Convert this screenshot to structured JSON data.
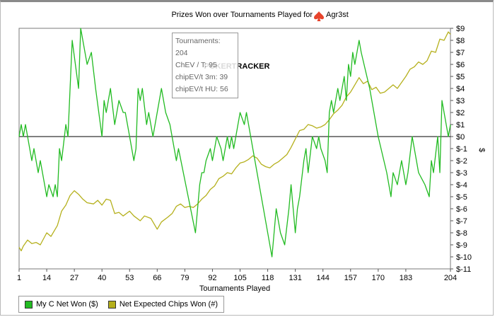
{
  "chart_data": {
    "type": "line",
    "title": "Prizes Won over Tournaments Played for",
    "player": "Agr3st",
    "xlabel": "Tournaments Played",
    "ylabel": "$",
    "xlim": [
      1,
      204
    ],
    "ylim": [
      -11,
      9
    ],
    "x_ticks": [
      1,
      14,
      27,
      40,
      53,
      66,
      79,
      92,
      105,
      118,
      131,
      144,
      157,
      170,
      183,
      204
    ],
    "y_ticks": [
      "$9",
      "$8",
      "$7",
      "$6",
      "$5",
      "$4",
      "$3",
      "$2",
      "$1",
      "$0",
      "$-1",
      "$-2",
      "$-3",
      "$-4",
      "$-5",
      "$-6",
      "$-7",
      "$-8",
      "$-9",
      "$-10",
      "$-11"
    ],
    "legend_position": "bottom-left",
    "series": [
      {
        "name": "My C Net Won ($)",
        "color": "#22bb22",
        "points": [
          [
            1,
            0
          ],
          [
            2,
            1
          ],
          [
            3,
            0
          ],
          [
            4,
            1
          ],
          [
            6,
            -1
          ],
          [
            7,
            -2
          ],
          [
            8,
            -1
          ],
          [
            10,
            -3
          ],
          [
            11,
            -2
          ],
          [
            13,
            -4
          ],
          [
            14,
            -5
          ],
          [
            15,
            -4
          ],
          [
            17,
            -5
          ],
          [
            18,
            -4
          ],
          [
            19,
            -5
          ],
          [
            20,
            -1
          ],
          [
            21,
            -2
          ],
          [
            23,
            1
          ],
          [
            24,
            0
          ],
          [
            26,
            8
          ],
          [
            29,
            4
          ],
          [
            30,
            9
          ],
          [
            33,
            6
          ],
          [
            35,
            7
          ],
          [
            37,
            4
          ],
          [
            40,
            0
          ],
          [
            41,
            3
          ],
          [
            42,
            2
          ],
          [
            44,
            4
          ],
          [
            46,
            1
          ],
          [
            47,
            2
          ],
          [
            48,
            3
          ],
          [
            50,
            2
          ],
          [
            51,
            2
          ],
          [
            53,
            0
          ],
          [
            55,
            -2
          ],
          [
            56,
            -1
          ],
          [
            57,
            4
          ],
          [
            58,
            3
          ],
          [
            59,
            4
          ],
          [
            61,
            1
          ],
          [
            62,
            2
          ],
          [
            64,
            0
          ],
          [
            67,
            3
          ],
          [
            68,
            4
          ],
          [
            70,
            2
          ],
          [
            72,
            1
          ],
          [
            75,
            -2
          ],
          [
            76,
            -1
          ],
          [
            84,
            -8
          ],
          [
            86,
            -4
          ],
          [
            87,
            -3
          ],
          [
            88,
            -3
          ],
          [
            89,
            -2
          ],
          [
            91,
            -1
          ],
          [
            92,
            -2
          ],
          [
            93,
            -1
          ],
          [
            94,
            0
          ],
          [
            96,
            -1
          ],
          [
            97,
            -2
          ],
          [
            98,
            -1
          ],
          [
            99,
            0
          ],
          [
            100,
            -1
          ],
          [
            101,
            0
          ],
          [
            102,
            -1
          ],
          [
            104,
            1
          ],
          [
            105,
            2
          ],
          [
            107,
            1
          ],
          [
            108,
            2
          ],
          [
            111,
            -1
          ],
          [
            120,
            -10
          ],
          [
            122,
            -6
          ],
          [
            123,
            -7
          ],
          [
            124,
            -8
          ],
          [
            126,
            -9
          ],
          [
            128,
            -6
          ],
          [
            129,
            -4
          ],
          [
            131,
            -8
          ],
          [
            132,
            -6
          ],
          [
            133,
            -5
          ],
          [
            135,
            -2
          ],
          [
            136,
            -1
          ],
          [
            137,
            -3
          ],
          [
            139,
            0
          ],
          [
            141,
            -1
          ],
          [
            142,
            0
          ],
          [
            143,
            -1
          ],
          [
            145,
            -2
          ],
          [
            146,
            -3
          ],
          [
            147,
            2
          ],
          [
            148,
            3
          ],
          [
            149,
            2
          ],
          [
            151,
            4
          ],
          [
            152,
            3
          ],
          [
            154,
            5
          ],
          [
            155,
            3
          ],
          [
            156,
            6
          ],
          [
            157,
            5
          ],
          [
            158,
            7
          ],
          [
            159,
            6
          ],
          [
            160,
            7
          ],
          [
            161,
            8
          ],
          [
            162,
            7
          ],
          [
            166,
            4
          ],
          [
            168,
            2
          ],
          [
            169,
            1
          ],
          [
            170,
            0
          ],
          [
            174,
            -3
          ],
          [
            176,
            -5
          ],
          [
            177,
            -3
          ],
          [
            179,
            -4
          ],
          [
            181,
            -2
          ],
          [
            183,
            -4
          ],
          [
            184,
            -3
          ],
          [
            186,
            0
          ],
          [
            187,
            -1
          ],
          [
            189,
            -3
          ],
          [
            192,
            -4
          ],
          [
            194,
            -5
          ],
          [
            195,
            -2
          ],
          [
            196,
            -3
          ],
          [
            198,
            0
          ],
          [
            199,
            -3
          ],
          [
            200,
            3
          ],
          [
            203,
            0
          ],
          [
            204,
            1
          ]
        ]
      },
      {
        "name": "Net Expected Chips Won (#)",
        "color": "#b5b01c",
        "points": [
          [
            1,
            -9.2
          ],
          [
            2,
            -9.5
          ],
          [
            3,
            -9.1
          ],
          [
            5,
            -8.6
          ],
          [
            7,
            -8.9
          ],
          [
            9,
            -8.8
          ],
          [
            11,
            -9.0
          ],
          [
            14,
            -8.0
          ],
          [
            16,
            -8.3
          ],
          [
            19,
            -7.4
          ],
          [
            21,
            -6.2
          ],
          [
            23,
            -5.7
          ],
          [
            25,
            -4.9
          ],
          [
            27,
            -4.5
          ],
          [
            29,
            -4.8
          ],
          [
            31,
            -5.2
          ],
          [
            33,
            -5.5
          ],
          [
            36,
            -5.6
          ],
          [
            38,
            -5.3
          ],
          [
            40,
            -5.7
          ],
          [
            42,
            -5.2
          ],
          [
            44,
            -5.3
          ],
          [
            46,
            -6.4
          ],
          [
            48,
            -6.3
          ],
          [
            50,
            -6.6
          ],
          [
            53,
            -6.2
          ],
          [
            55,
            -6.6
          ],
          [
            58,
            -7.0
          ],
          [
            60,
            -6.6
          ],
          [
            63,
            -6.8
          ],
          [
            66,
            -7.7
          ],
          [
            68,
            -7.1
          ],
          [
            71,
            -6.7
          ],
          [
            73,
            -6.4
          ],
          [
            75,
            -5.8
          ],
          [
            77,
            -5.6
          ],
          [
            79,
            -5.9
          ],
          [
            81,
            -5.8
          ],
          [
            83,
            -5.9
          ],
          [
            85,
            -5.6
          ],
          [
            87,
            -5.2
          ],
          [
            89,
            -4.9
          ],
          [
            91,
            -4.4
          ],
          [
            93,
            -4.1
          ],
          [
            95,
            -3.5
          ],
          [
            97,
            -3.3
          ],
          [
            99,
            -3.0
          ],
          [
            101,
            -3.1
          ],
          [
            103,
            -2.6
          ],
          [
            105,
            -2.2
          ],
          [
            107,
            -2.1
          ],
          [
            109,
            -1.9
          ],
          [
            111,
            -1.6
          ],
          [
            113,
            -1.8
          ],
          [
            115,
            -2.3
          ],
          [
            117,
            -2.5
          ],
          [
            119,
            -2.6
          ],
          [
            121,
            -2.3
          ],
          [
            123,
            -2.1
          ],
          [
            125,
            -1.8
          ],
          [
            127,
            -1.5
          ],
          [
            129,
            -0.9
          ],
          [
            131,
            -0.2
          ],
          [
            133,
            0.5
          ],
          [
            135,
            0.6
          ],
          [
            137,
            1.0
          ],
          [
            139,
            0.9
          ],
          [
            141,
            0.7
          ],
          [
            143,
            0.8
          ],
          [
            145,
            1.0
          ],
          [
            147,
            1.4
          ],
          [
            149,
            1.9
          ],
          [
            151,
            2.2
          ],
          [
            153,
            2.6
          ],
          [
            155,
            3.3
          ],
          [
            157,
            3.7
          ],
          [
            159,
            4.3
          ],
          [
            161,
            4.9
          ],
          [
            163,
            4.4
          ],
          [
            165,
            4.6
          ],
          [
            167,
            3.9
          ],
          [
            169,
            4.1
          ],
          [
            171,
            3.6
          ],
          [
            173,
            3.7
          ],
          [
            175,
            4.0
          ],
          [
            177,
            4.3
          ],
          [
            179,
            4.0
          ],
          [
            181,
            4.5
          ],
          [
            183,
            5.0
          ],
          [
            185,
            5.6
          ],
          [
            187,
            5.8
          ],
          [
            189,
            6.2
          ],
          [
            191,
            6.0
          ],
          [
            193,
            6.3
          ],
          [
            195,
            7.1
          ],
          [
            197,
            7.0
          ],
          [
            199,
            8.1
          ],
          [
            201,
            8.0
          ],
          [
            203,
            8.7
          ],
          [
            204,
            8.5
          ]
        ]
      }
    ]
  },
  "tooltip": {
    "line1": "Tournaments: 204",
    "line2": "ChEV / T: 95",
    "line3": "chipEV/t 3m: 39",
    "line4": "chipEV/t HU: 56"
  },
  "watermark": "POKERTRACKER"
}
